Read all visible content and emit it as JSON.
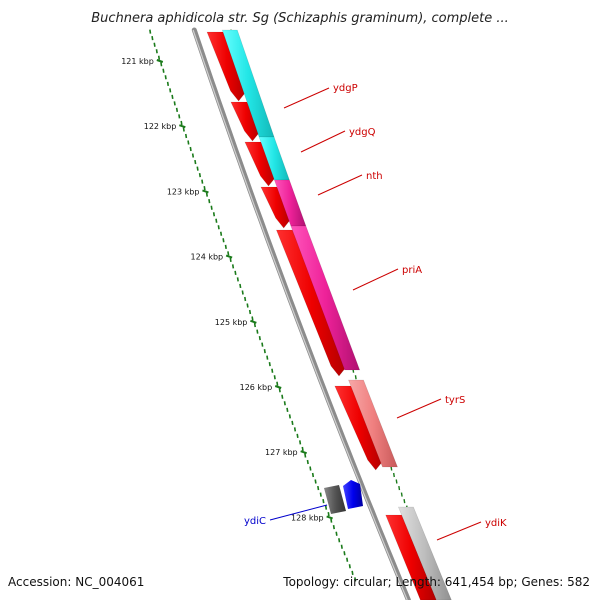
{
  "title": "Buchnera aphidicola str. Sg (Schizaphis graminum), complete ...",
  "accession_text": "Accession: NC_004061",
  "summary_text": "Topology: circular; Length: 641,454 bp; Genes: 582",
  "scale_ticks": [
    {
      "label": "121 kbp",
      "kbp": 121
    },
    {
      "label": "122 kbp",
      "kbp": 122
    },
    {
      "label": "123 kbp",
      "kbp": 123
    },
    {
      "label": "124 kbp",
      "kbp": 124
    },
    {
      "label": "125 kbp",
      "kbp": 125
    },
    {
      "label": "126 kbp",
      "kbp": 126
    },
    {
      "label": "127 kbp",
      "kbp": 127
    },
    {
      "label": "128 kbp",
      "kbp": 128
    }
  ],
  "genes": [
    {
      "name": "ydgP",
      "label_color": "#cc0000"
    },
    {
      "name": "ydgQ",
      "label_color": "#cc0000"
    },
    {
      "name": "nth",
      "label_color": "#cc0000"
    },
    {
      "name": "priA",
      "label_color": "#cc0000"
    },
    {
      "name": "tyrS",
      "label_color": "#cc0000"
    },
    {
      "name": "ydiC",
      "label_color": "#0000cc"
    },
    {
      "name": "ydiK",
      "label_color": "#cc0000"
    }
  ],
  "colors": {
    "backbone": "#8c8c8c",
    "tick": "#1a7a1a",
    "cds": "#ee0000",
    "cyan_feature": "#22e6e6",
    "magenta_feature": "#ee2299",
    "pink_feature": "#f08080",
    "gray_feature": "#bdbdbd",
    "dark_gray_feature": "#555555",
    "blue_feature": "#0000ee",
    "red_label": "#cc0000",
    "blue_label": "#0000cc"
  }
}
